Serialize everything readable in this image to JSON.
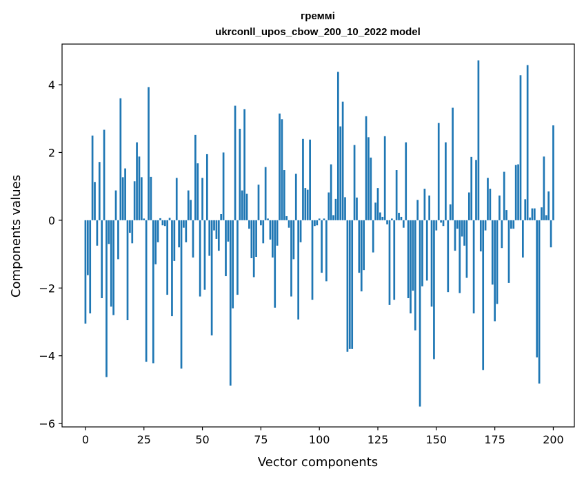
{
  "chart_data": {
    "type": "bar",
    "title": "греммі",
    "subtitle": "ukrconll_upos_cbow_200_10_2022 model",
    "xlabel": "Vector components",
    "ylabel": "Components values",
    "xlim": [
      -10,
      209
    ],
    "ylim": [
      -6.1,
      5.2
    ],
    "xticks": [
      0,
      25,
      50,
      75,
      100,
      125,
      150,
      175,
      200
    ],
    "yticks": [
      -6,
      -4,
      -2,
      0,
      2,
      4
    ],
    "ytick_labels": [
      "−6",
      "−4",
      "−2",
      "0",
      "2",
      "4"
    ],
    "bar_color": "#1f77b4",
    "grid": false,
    "legend": "none",
    "values": [
      -3.05,
      -1.62,
      -2.75,
      2.5,
      1.13,
      -0.75,
      1.72,
      -2.3,
      2.67,
      -4.63,
      -0.7,
      -2.55,
      -2.8,
      0.88,
      -1.15,
      3.6,
      1.27,
      1.53,
      -2.95,
      -0.37,
      -0.68,
      1.15,
      2.3,
      1.88,
      1.27,
      0.05,
      -4.18,
      3.93,
      1.28,
      -4.22,
      -1.3,
      -0.65,
      0.06,
      -0.15,
      -0.17,
      -2.2,
      0.07,
      -2.83,
      -1.2,
      1.25,
      -0.8,
      -4.38,
      -0.22,
      -0.65,
      0.88,
      0.6,
      -1.1,
      2.52,
      1.68,
      -2.25,
      1.25,
      -2.05,
      1.95,
      -1.05,
      -3.4,
      -0.3,
      -0.55,
      -0.9,
      0.18,
      2.0,
      -1.65,
      -0.63,
      -4.88,
      -2.6,
      3.38,
      -2.2,
      2.7,
      0.88,
      3.28,
      0.78,
      -0.25,
      -1.12,
      -1.68,
      -1.08,
      1.05,
      -0.15,
      -0.68,
      1.57,
      0.05,
      -0.57,
      -1.1,
      -2.58,
      -0.75,
      3.15,
      2.98,
      1.48,
      0.12,
      -0.22,
      -2.25,
      -1.15,
      1.37,
      -2.93,
      -0.65,
      2.4,
      0.95,
      0.9,
      2.38,
      -2.35,
      -0.17,
      -0.15,
      0.05,
      -1.55,
      0.05,
      -1.8,
      0.82,
      1.65,
      0.15,
      0.63,
      4.38,
      2.77,
      3.5,
      0.68,
      -3.88,
      -3.8,
      -3.8,
      2.22,
      0.67,
      -1.55,
      -2.1,
      -1.47,
      3.07,
      2.45,
      1.85,
      -0.95,
      0.52,
      0.95,
      0.23,
      0.1,
      2.48,
      -0.12,
      -2.5,
      0.05,
      -2.35,
      1.48,
      0.22,
      0.1,
      -0.22,
      2.3,
      -2.3,
      -2.75,
      -2.08,
      -3.25,
      0.6,
      -5.5,
      -1.95,
      0.93,
      -1.78,
      0.73,
      -2.55,
      -4.1,
      -0.3,
      2.87,
      -0.07,
      -0.17,
      2.3,
      -2.12,
      0.47,
      3.32,
      -0.9,
      -0.25,
      -2.15,
      -0.48,
      -0.75,
      -1.7,
      0.82,
      1.87,
      -2.75,
      1.78,
      4.72,
      -0.92,
      -4.42,
      -0.3,
      1.25,
      0.93,
      -1.9,
      -2.98,
      -2.47,
      0.73,
      -0.82,
      1.43,
      0.3,
      -1.85,
      -0.25,
      -0.25,
      1.63,
      1.65,
      4.28,
      -1.1,
      0.62,
      4.58,
      0.08,
      0.35,
      0.35,
      -4.05,
      -4.82,
      0.38,
      1.88,
      0.15,
      0.85,
      -0.8,
      2.8
    ]
  }
}
